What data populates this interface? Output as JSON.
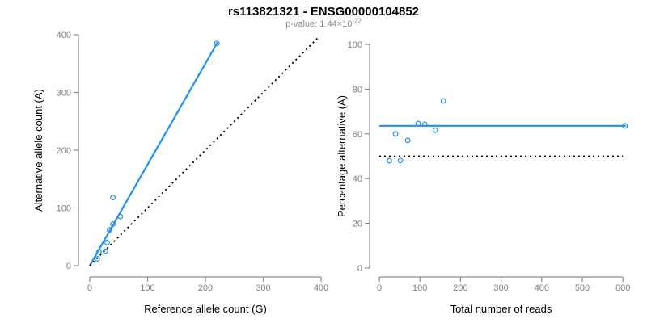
{
  "header": {
    "title": "rs113821321 - ENSG00000104852",
    "subtitle_prefix": "p-value: 1.44×10",
    "subtitle_exponent": "-22"
  },
  "styles": {
    "accent_blue": "#1E90FF",
    "identity_black": "#000000",
    "axis_line_color": "#8c8c8c",
    "tick_label_color": "#808080",
    "axis_title_color": "#000000",
    "background": "#ffffff"
  },
  "chart_data": [
    {
      "type": "scatter",
      "name": "allele-count-scatter",
      "xlabel": "Reference allele count (G)",
      "ylabel": "Alternative allele count (A)",
      "xlim": [
        0,
        400
      ],
      "ylim": [
        0,
        400
      ],
      "xticks": [
        0,
        100,
        200,
        300,
        400
      ],
      "yticks": [
        0,
        100,
        200,
        300,
        400
      ],
      "grid": false,
      "points": [
        [
          220,
          385
        ],
        [
          40,
          118
        ],
        [
          53,
          85
        ],
        [
          40,
          72
        ],
        [
          34,
          62
        ],
        [
          30,
          40
        ],
        [
          16,
          24
        ],
        [
          27,
          25
        ],
        [
          13,
          12
        ]
      ],
      "lines": [
        {
          "name": "fitted-ratio-line",
          "style": "solid",
          "color": "#1E90FF",
          "width": 2.2,
          "from": [
            0,
            0
          ],
          "to": [
            221,
            387
          ]
        },
        {
          "name": "identity-line",
          "style": "dotted",
          "color": "#000000",
          "width": 1.8,
          "from": [
            0,
            0
          ],
          "to": [
            395,
            395
          ]
        }
      ]
    },
    {
      "type": "scatter",
      "name": "percentage-scatter",
      "xlabel": "Total number of reads",
      "ylabel": "Percentage alternative (A)",
      "xlim": [
        0,
        600
      ],
      "ylim": [
        0,
        100
      ],
      "xticks": [
        0,
        100,
        200,
        300,
        400,
        500,
        600
      ],
      "yticks": [
        0,
        20,
        40,
        60,
        80,
        100
      ],
      "grid": false,
      "points": [
        [
          605,
          63.6
        ],
        [
          158,
          74.7
        ],
        [
          138,
          61.6
        ],
        [
          112,
          64.3
        ],
        [
          96,
          64.6
        ],
        [
          70,
          57.1
        ],
        [
          40,
          60.0
        ],
        [
          52,
          48.1
        ],
        [
          25,
          48.0
        ]
      ],
      "lines": [
        {
          "name": "mean-percentage-line",
          "style": "solid",
          "color": "#1E90FF",
          "width": 2.2,
          "from": [
            0,
            63.6
          ],
          "to": [
            607,
            63.6
          ]
        },
        {
          "name": "null-50-percent-line",
          "style": "dotted",
          "color": "#000000",
          "width": 1.8,
          "from": [
            0,
            50
          ],
          "to": [
            600,
            50
          ]
        }
      ]
    }
  ]
}
